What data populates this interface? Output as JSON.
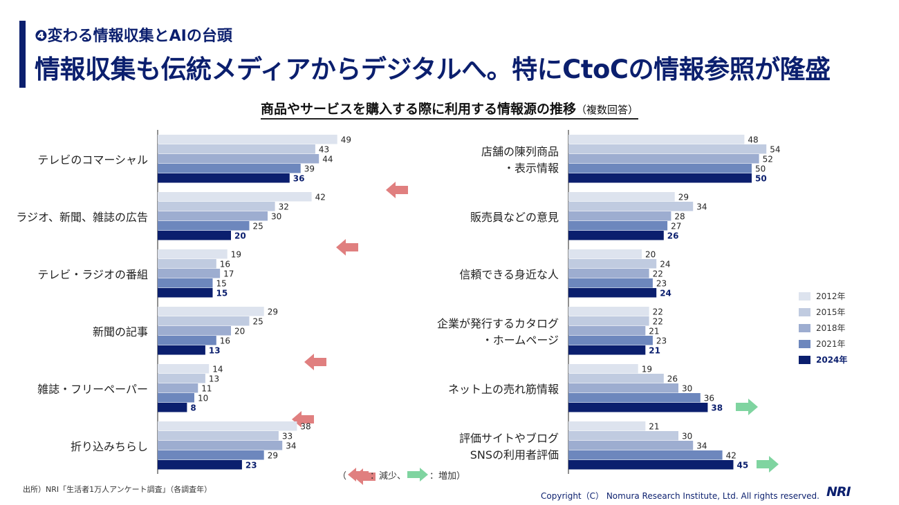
{
  "header": {
    "subtitle": "❹変わる情報収集とAIの台頭",
    "title": "情報収集も伝統メディアからデジタルへ。特にCtoCの情報参照が隆盛"
  },
  "chart_data": {
    "type": "bar",
    "orientation": "horizontal",
    "title": "商品やサービスを購入する際に利用する情報源の推移",
    "title_note": "（複数回答）",
    "legend_position": "right",
    "series_names": [
      "2012年",
      "2015年",
      "2018年",
      "2021年",
      "2024年"
    ],
    "colors": [
      "#dde3ee",
      "#c0cbe0",
      "#9dadd0",
      "#6d87bd",
      "#0b1f6e"
    ],
    "panels": [
      {
        "categories": [
          "テレビのコマーシャル",
          "ラジオ、新聞、雑誌の広告",
          "テレビ・ラジオの番組",
          "新聞の記事",
          "雑誌・フリーペーパー",
          "折り込みちらし"
        ],
        "values": [
          [
            49,
            43,
            44,
            39,
            36
          ],
          [
            42,
            32,
            30,
            25,
            20
          ],
          [
            19,
            16,
            17,
            15,
            15
          ],
          [
            29,
            25,
            20,
            16,
            13
          ],
          [
            14,
            13,
            11,
            10,
            8
          ],
          [
            38,
            33,
            34,
            29,
            23
          ]
        ],
        "trend": [
          "down",
          "down",
          "none",
          "down",
          "down",
          "down"
        ]
      },
      {
        "categories": [
          "店舗の陳列商品\n・表示情報",
          "販売員などの意見",
          "信頼できる身近な人",
          "企業が発行するカタログ\n・ホームページ",
          "ネット上の売れ筋情報",
          "評価サイトやブログ\nSNSの利用者評価"
        ],
        "values": [
          [
            48,
            54,
            52,
            50,
            50
          ],
          [
            29,
            34,
            28,
            27,
            26
          ],
          [
            20,
            24,
            22,
            23,
            24
          ],
          [
            22,
            22,
            21,
            23,
            21
          ],
          [
            19,
            26,
            30,
            36,
            38
          ],
          [
            21,
            30,
            34,
            42,
            45
          ]
        ],
        "trend": [
          "none",
          "none",
          "none",
          "none",
          "up",
          "up"
        ]
      }
    ],
    "arrow_colors": {
      "down": "#e07f7f",
      "up": "#7fd4a0"
    }
  },
  "arrow_legend": {
    "open": "（",
    "decrease": "：減少、",
    "increase": "：増加）"
  },
  "footer": {
    "source": "出所）NRI「生活者1万人アンケート調査」（各調査年）",
    "copyright": "Copyright（C） Nomura Research Institute, Ltd. All rights reserved.",
    "logo": "NRI"
  }
}
